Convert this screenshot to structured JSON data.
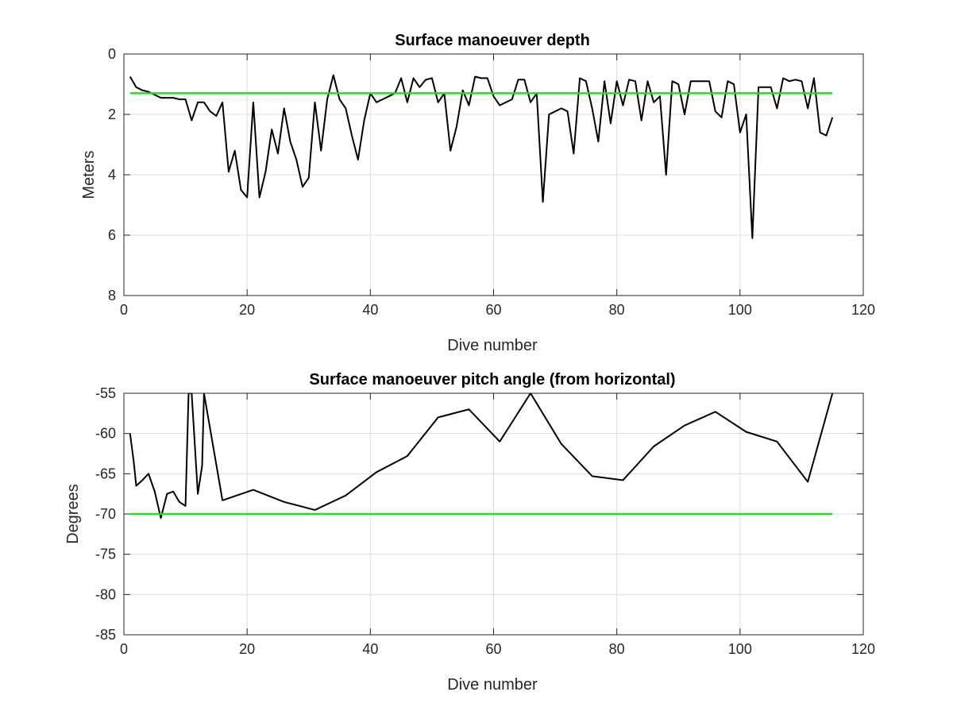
{
  "chart_data": [
    {
      "type": "line",
      "title": "Surface manoeuver depth",
      "xlabel": "Dive number",
      "ylabel": "Meters",
      "xlim": [
        0,
        120
      ],
      "ylim": [
        0,
        8
      ],
      "y_reversed": true,
      "grid": true,
      "xticks": [
        "0",
        "20",
        "40",
        "60",
        "80",
        "100",
        "120"
      ],
      "yticks": [
        "0",
        "2",
        "4",
        "6",
        "8"
      ],
      "series": [
        {
          "color": "#000000",
          "x": [
            1,
            2,
            3,
            4,
            5,
            6,
            7,
            8,
            9,
            10,
            11,
            12,
            13,
            14,
            15,
            16,
            17,
            18,
            19,
            20,
            21,
            22,
            23,
            24,
            25,
            26,
            27,
            28,
            29,
            30,
            31,
            32,
            33,
            34,
            35,
            36,
            37,
            38,
            39,
            40,
            41,
            42,
            43,
            44,
            45,
            46,
            47,
            48,
            49,
            50,
            51,
            52,
            53,
            54,
            55,
            56,
            57,
            58,
            59,
            60,
            61,
            62,
            63,
            64,
            65,
            66,
            67,
            68,
            69,
            70,
            71,
            72,
            73,
            74,
            75,
            76,
            77,
            78,
            79,
            80,
            81,
            82,
            83,
            84,
            85,
            86,
            87,
            88,
            89,
            90,
            91,
            92,
            93,
            94,
            95,
            96,
            97,
            98,
            99,
            100,
            101,
            102,
            103,
            104,
            105,
            106,
            107,
            108,
            109,
            110,
            111,
            112,
            113,
            114,
            115
          ],
          "y": [
            0.75,
            1.1,
            1.2,
            1.25,
            1.35,
            1.45,
            1.45,
            1.45,
            1.5,
            1.5,
            2.2,
            1.6,
            1.6,
            1.9,
            2.05,
            1.6,
            3.9,
            3.2,
            4.5,
            4.75,
            1.6,
            4.75,
            3.9,
            2.5,
            3.3,
            1.8,
            2.9,
            3.5,
            4.4,
            4.1,
            1.6,
            3.2,
            1.5,
            0.7,
            1.5,
            1.8,
            2.7,
            3.5,
            2.2,
            1.3,
            1.6,
            1.5,
            1.4,
            1.3,
            0.8,
            1.6,
            0.8,
            1.1,
            0.85,
            0.8,
            1.6,
            1.3,
            3.2,
            2.4,
            1.2,
            1.7,
            0.75,
            0.8,
            0.8,
            1.4,
            1.7,
            1.6,
            1.5,
            0.85,
            0.85,
            1.6,
            1.3,
            4.9,
            2.0,
            1.9,
            1.8,
            1.9,
            3.3,
            0.8,
            0.9,
            1.8,
            2.9,
            0.9,
            2.3,
            0.9,
            1.7,
            0.85,
            0.9,
            2.2,
            0.9,
            1.6,
            1.4,
            4.0,
            0.9,
            1.0,
            2.0,
            0.9,
            0.9,
            0.9,
            0.9,
            1.9,
            2.1,
            0.9,
            1.0,
            2.6,
            2.0,
            6.1,
            1.1,
            1.1,
            1.1,
            1.8,
            0.8,
            0.9,
            0.85,
            0.9,
            1.8,
            0.8,
            2.6,
            2.7,
            2.1
          ]
        },
        {
          "color": "#22dd22",
          "x": [
            1,
            115
          ],
          "y": [
            1.3,
            1.3
          ]
        }
      ]
    },
    {
      "type": "line",
      "title": "Surface manoeuver pitch angle (from horizontal)",
      "xlabel": "Dive number",
      "ylabel": "Degrees",
      "xlim": [
        0,
        120
      ],
      "ylim": [
        -85,
        -55
      ],
      "grid": true,
      "xticks": [
        "0",
        "20",
        "40",
        "60",
        "80",
        "100",
        "120"
      ],
      "yticks": [
        "-55",
        "-60",
        "-65",
        "-70",
        "-75",
        "-80",
        "-85"
      ],
      "series": [
        {
          "color": "#000000",
          "x": [
            1,
            1.6,
            2,
            3,
            4,
            5,
            6,
            7,
            8,
            9,
            10,
            10.5,
            11,
            12,
            12.7,
            13,
            16,
            21,
            26,
            31,
            36,
            41,
            46,
            51,
            56,
            61,
            66,
            71,
            76,
            81,
            86,
            91,
            96,
            101,
            106,
            111,
            115
          ],
          "y": [
            -60,
            -63.5,
            -66.5,
            -65.8,
            -65,
            -67.2,
            -70.5,
            -67.5,
            -67.2,
            -68.5,
            -69,
            -55,
            -55,
            -67.5,
            -64,
            -55,
            -68.3,
            -67,
            -68.5,
            -69.5,
            -67.7,
            -64.8,
            -62.8,
            -58,
            -57,
            -61,
            -55,
            -61.3,
            -65.3,
            -65.8,
            -61.6,
            -59,
            -57.3,
            -59.8,
            -61,
            -66,
            -55
          ]
        },
        {
          "color": "#22dd22",
          "x": [
            1,
            115
          ],
          "y": [
            -70,
            -70
          ]
        }
      ]
    }
  ]
}
